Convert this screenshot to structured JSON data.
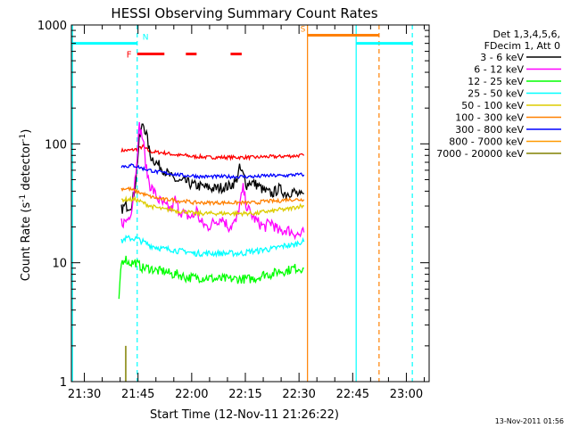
{
  "chart_data": {
    "type": "line",
    "title": "HESSI Observing Summary Count Rates",
    "xlabel": "Start Time (12-Nov-11 21:26:22)",
    "ylabel_main": "Count Rate (s",
    "ylabel_sup1": "-1",
    "ylabel_mid": " detector",
    "ylabel_sup2": "-1",
    "ylabel_end": ")",
    "footer": "13-Nov-2011 01:56",
    "y_scale": "log",
    "ylim": [
      1,
      1000
    ],
    "xlim_minutes": [
      0,
      100
    ],
    "x_ticks": [
      {
        "m": 3.63,
        "label": "21:30"
      },
      {
        "m": 18.63,
        "label": "21:45"
      },
      {
        "m": 33.63,
        "label": "22:00"
      },
      {
        "m": 48.63,
        "label": "22:15"
      },
      {
        "m": 63.63,
        "label": "22:30"
      },
      {
        "m": 78.63,
        "label": "22:45"
      },
      {
        "m": 93.63,
        "label": "23:00"
      }
    ],
    "y_ticks": [
      {
        "v": 1,
        "label": "1"
      },
      {
        "v": 10,
        "label": "10"
      },
      {
        "v": 100,
        "label": "100"
      },
      {
        "v": 1000,
        "label": "1000"
      }
    ],
    "legend_header": [
      "Det 1,3,4,5,6,",
      "FDecim 1, Att 0"
    ],
    "legend_placement": "right",
    "series": [
      {
        "name": "3 - 6 keV",
        "color": "#000000",
        "x": [
          14,
          15,
          16,
          17,
          18,
          19,
          20,
          21,
          22,
          24,
          26,
          28,
          30,
          32,
          34,
          36,
          38,
          40,
          42,
          44,
          46,
          47,
          48,
          49,
          50,
          52,
          54,
          56,
          58,
          60,
          62,
          64,
          65
        ],
        "y": [
          28,
          30,
          30,
          31,
          50,
          110,
          150,
          120,
          80,
          68,
          60,
          52,
          48,
          48,
          45,
          44,
          43,
          42,
          43,
          44,
          48,
          62,
          55,
          45,
          48,
          45,
          40,
          38,
          42,
          38,
          40,
          36,
          38
        ]
      },
      {
        "name": "6 - 12 keV",
        "color": "#ff00ff",
        "x": [
          14,
          15,
          16,
          17,
          18,
          19,
          20,
          21,
          22,
          23,
          24,
          26,
          28,
          29,
          30,
          32,
          34,
          35,
          36,
          38,
          40,
          42,
          44,
          46,
          47,
          48,
          49,
          50,
          52,
          54,
          56,
          58,
          60,
          62,
          64,
          65
        ],
        "y": [
          22,
          22,
          24,
          30,
          60,
          140,
          110,
          60,
          45,
          40,
          35,
          30,
          28,
          34,
          28,
          25,
          24,
          28,
          22,
          20,
          22,
          24,
          20,
          22,
          30,
          42,
          30,
          26,
          22,
          20,
          22,
          18,
          19,
          18,
          17,
          18
        ]
      },
      {
        "name": "12 - 25 keV",
        "color": "#00ff00",
        "x": [
          13.3,
          13.8,
          14,
          15,
          16,
          17,
          18,
          20,
          22,
          24,
          26,
          28,
          30,
          32,
          34,
          36,
          38,
          40,
          42,
          44,
          46,
          48,
          50,
          52,
          54,
          56,
          58,
          60,
          62,
          64,
          65
        ],
        "y": [
          5,
          8,
          10,
          11,
          10,
          10,
          10,
          9,
          9,
          8.5,
          8.5,
          8,
          8,
          7.5,
          7.5,
          7.5,
          7.5,
          7.3,
          7.3,
          7.3,
          7.3,
          7.3,
          7.3,
          7.5,
          8,
          8,
          8.5,
          8.5,
          9,
          9,
          9
        ]
      },
      {
        "name": "25 - 50 keV",
        "color": "#00ffff",
        "x": [
          14,
          15,
          16,
          17,
          18,
          20,
          22,
          24,
          26,
          28,
          30,
          32,
          34,
          36,
          38,
          40,
          42,
          44,
          46,
          48,
          50,
          52,
          54,
          56,
          58,
          60,
          62,
          64,
          65
        ],
        "y": [
          15,
          16,
          16,
          16,
          16,
          15,
          14,
          13.5,
          13,
          13,
          12.5,
          12.5,
          12,
          12,
          12,
          12,
          12,
          12,
          12,
          12,
          12.5,
          12.5,
          13,
          13,
          13.5,
          14,
          14,
          15,
          15
        ]
      },
      {
        "name": "50 - 100 keV",
        "color": "#ddcc00",
        "x": [
          14,
          15,
          16,
          17,
          18,
          20,
          22,
          24,
          26,
          28,
          30,
          32,
          34,
          36,
          38,
          40,
          42,
          44,
          46,
          48,
          50,
          52,
          54,
          56,
          58,
          60,
          62,
          64,
          65
        ],
        "y": [
          34,
          34,
          34,
          34,
          34,
          32,
          30,
          29,
          28,
          28,
          27,
          27,
          26,
          26,
          26,
          26,
          26,
          26,
          26,
          26,
          26,
          26,
          27,
          27,
          28,
          28,
          29,
          30,
          30
        ]
      },
      {
        "name": "100 - 300 keV",
        "color": "#ff8000",
        "x": [
          14,
          15,
          16,
          17,
          18,
          20,
          22,
          24,
          26,
          28,
          30,
          32,
          34,
          36,
          38,
          40,
          42,
          44,
          46,
          48,
          50,
          52,
          54,
          56,
          58,
          60,
          62,
          64,
          65
        ],
        "y": [
          42,
          42,
          42,
          41,
          40,
          38,
          36,
          35,
          34,
          34,
          33,
          33,
          32,
          32,
          32,
          32,
          32,
          32,
          32,
          32,
          32,
          32,
          33,
          33,
          33,
          34,
          34,
          34,
          34
        ]
      },
      {
        "name": "300 - 800 keV",
        "color": "#0000ff",
        "x": [
          14,
          15,
          16,
          17,
          18,
          20,
          22,
          24,
          26,
          28,
          30,
          32,
          34,
          36,
          38,
          40,
          42,
          44,
          46,
          48,
          50,
          52,
          54,
          56,
          58,
          60,
          62,
          64,
          65
        ],
        "y": [
          65,
          65,
          65,
          66,
          65,
          62,
          60,
          58,
          57,
          56,
          55,
          54,
          54,
          53,
          53,
          53,
          53,
          53,
          53,
          53,
          53,
          53,
          54,
          54,
          54,
          54,
          55,
          55,
          55
        ]
      },
      {
        "name": "800 - 7000 keV",
        "color": "#ff9900",
        "x": [],
        "y": []
      },
      {
        "name": "7000 - 20000 keV",
        "color": "#808000",
        "x": [],
        "y": []
      }
    ],
    "red_series": {
      "color": "#ff0000",
      "x": [
        14,
        15,
        16,
        17,
        18,
        19,
        20,
        21,
        22,
        24,
        26,
        28,
        30,
        32,
        34,
        36,
        38,
        40,
        42,
        44,
        46,
        48,
        50,
        52,
        54,
        56,
        58,
        60,
        62,
        64,
        65
      ],
      "y": [
        88,
        88,
        88,
        89,
        90,
        92,
        95,
        90,
        86,
        85,
        84,
        82,
        80,
        80,
        78,
        78,
        77,
        77,
        77,
        77,
        77,
        77,
        77,
        77,
        78,
        78,
        78,
        79,
        79,
        80,
        80
      ]
    },
    "attenuator_segments": [
      {
        "x0": 0,
        "x1": 18.4,
        "y": 700,
        "color": "#00ffff",
        "label": "N"
      },
      {
        "x0": 79.6,
        "x1": 95.3,
        "y": 700,
        "color": "#00ffff",
        "label": ""
      },
      {
        "x0": 66,
        "x1": 86,
        "y": 820,
        "color": "#ff8000",
        "label": "S"
      }
    ],
    "flare_segments": {
      "label": "F",
      "color": "#ff0000",
      "y": 570,
      "ranges": [
        [
          18.4,
          26
        ],
        [
          32,
          35
        ],
        [
          44.5,
          47.6
        ]
      ]
    },
    "vlines": [
      {
        "x": 0.3,
        "color": "#00ffff",
        "style": "solid"
      },
      {
        "x": 18.4,
        "color": "#00ffff",
        "style": "dashed"
      },
      {
        "x": 66,
        "color": "#ff8000",
        "style": "solid"
      },
      {
        "x": 79.6,
        "color": "#00ffff",
        "style": "solid"
      },
      {
        "x": 86,
        "color": "#ff8000",
        "style": "dashed"
      },
      {
        "x": 95.3,
        "color": "#00ffff",
        "style": "dashed"
      }
    ],
    "olive_spike": {
      "x": 15.2,
      "y": 2.0,
      "color": "#808000"
    }
  }
}
